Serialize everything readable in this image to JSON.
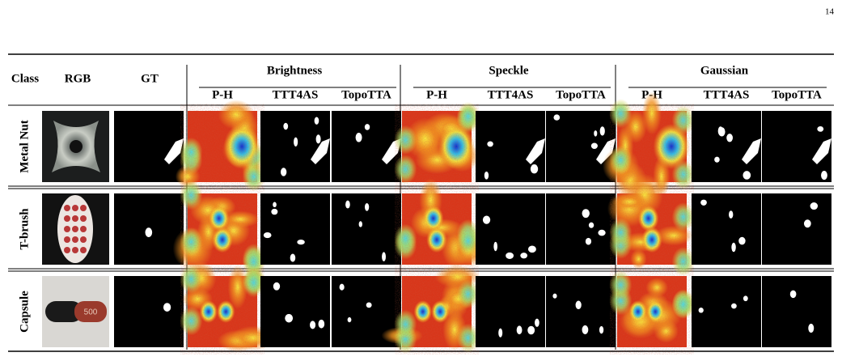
{
  "page_number": "14",
  "header": {
    "class": "Class",
    "rgb": "RGB",
    "gt": "GT",
    "groups": [
      "Brightness",
      "Speckle",
      "Gaussian"
    ],
    "methods": [
      "P-H",
      "TTT4AS",
      "TopoTTA"
    ]
  },
  "rows": [
    {
      "label": "Metal Nut"
    },
    {
      "label": "T-brush"
    },
    {
      "label": "Capsule",
      "print": "500"
    }
  ]
}
